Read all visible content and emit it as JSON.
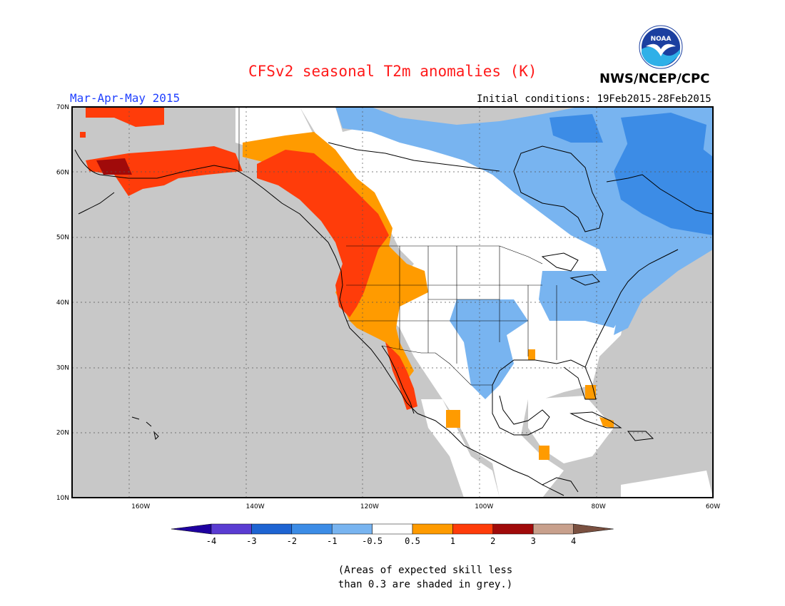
{
  "header": {
    "title": "CFSv2 seasonal T2m anomalies (K)",
    "season": "Mar-Apr-May 2015",
    "initial_conditions": "Initial conditions: 19Feb2015-28Feb2015",
    "agency": "NWS/NCEP/CPC",
    "logo_text": "NOAA"
  },
  "map": {
    "lon_range": [
      -172,
      -60
    ],
    "lat_range": [
      10,
      70
    ],
    "lat_labels": [
      "70N",
      "60N",
      "50N",
      "40N",
      "30N",
      "20N",
      "10N"
    ],
    "lon_labels": [
      "160W",
      "140W",
      "120W",
      "100W",
      "80W",
      "60W"
    ],
    "background_color": "#c8c8c8"
  },
  "legend": {
    "tick_labels": [
      "-4",
      "-3",
      "-2",
      "-1",
      "-0.5",
      "0.5",
      "1",
      "2",
      "3",
      "4"
    ],
    "colors": [
      "#1e00a0",
      "#5a3cd2",
      "#1e64d2",
      "#3c8ce6",
      "#78b4f0",
      "#ffffff",
      "#ff9b00",
      "#ff3c0a",
      "#a00a0a",
      "#c8a08c",
      "#7a5040"
    ]
  },
  "footnote": {
    "line1": "(Areas of expected skill less",
    "line2": "than 0.3 are shaded in grey.)"
  }
}
